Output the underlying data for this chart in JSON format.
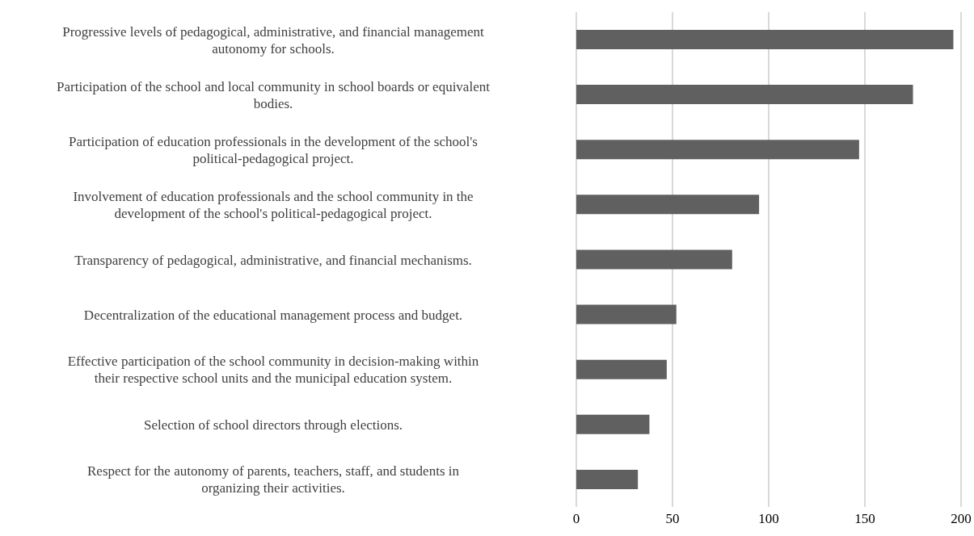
{
  "chart_data": {
    "type": "bar",
    "orientation": "horizontal",
    "categories": [
      "Progressive levels of pedagogical, administrative, and financial management autonomy for schools.",
      "Participation of the school and local community in school boards or equivalent bodies.",
      "Participation of education professionals in the development of the school's political-pedagogical project.",
      "Involvement of education professionals and the school community in the development of the school's political-pedagogical project.",
      "Transparency of pedagogical, administrative, and financial mechanisms.",
      "Decentralization of the educational management process and budget.",
      "Effective participation of the school community in decision-making within their respective school units and the municipal education system.",
      "Selection of school directors through elections.",
      "Respect for the autonomy of parents, teachers, staff, and students in organizing their activities."
    ],
    "values": [
      196,
      175,
      147,
      95,
      81,
      52,
      47,
      38,
      32
    ],
    "color": "#606060",
    "xlim": [
      0,
      200
    ],
    "xticks": [
      0,
      50,
      100,
      150,
      200
    ],
    "grid": "x"
  }
}
